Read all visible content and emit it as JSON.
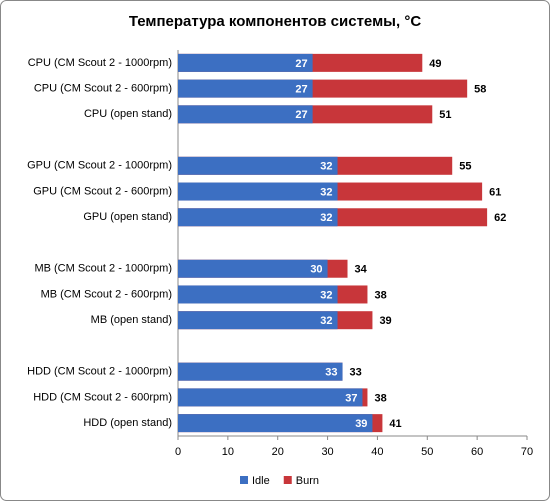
{
  "chart_data": {
    "type": "bar",
    "orientation": "horizontal",
    "overlap": true,
    "title": "Температура компонентов системы, °C",
    "categories": [
      "CPU (CM Scout 2 - 1000rpm)",
      "CPU (CM Scout 2 - 600rpm)",
      "CPU (open stand)",
      null,
      "GPU (CM Scout 2 - 1000rpm)",
      "GPU (CM Scout 2 - 600rpm)",
      "GPU (open stand)",
      null,
      "MB (CM Scout 2 - 1000rpm)",
      "MB (CM Scout 2 - 600rpm)",
      "MB (open stand)",
      null,
      "HDD (CM Scout 2 - 1000rpm)",
      "HDD (CM Scout 2 - 600rpm)",
      "HDD (open stand)"
    ],
    "series": [
      {
        "name": "Burn",
        "color": "#c8363a",
        "values": [
          49,
          58,
          51,
          null,
          55,
          61,
          62,
          null,
          34,
          38,
          39,
          null,
          33,
          38,
          41
        ]
      },
      {
        "name": "Idle",
        "color": "#3c6fc2",
        "values": [
          27,
          27,
          27,
          null,
          32,
          32,
          32,
          null,
          30,
          32,
          32,
          null,
          33,
          37,
          39
        ]
      }
    ],
    "xlim": [
      0,
      70
    ],
    "xticks": [
      0,
      10,
      20,
      30,
      40,
      50,
      60,
      70
    ],
    "legend": "bottom"
  }
}
